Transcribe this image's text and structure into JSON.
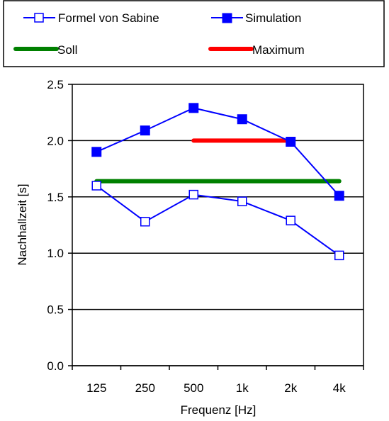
{
  "chart_data": {
    "type": "line",
    "categories": [
      "125",
      "250",
      "500",
      "1k",
      "2k",
      "4k"
    ],
    "xlabel": "Frequenz [Hz]",
    "ylabel": "Nachhallzeit [s]",
    "ylim": [
      0.0,
      2.5
    ],
    "yticks": [
      "0.0",
      "0.5",
      "1.0",
      "1.5",
      "2.0",
      "2.5"
    ],
    "grid": true,
    "legend_position": "top",
    "series": [
      {
        "name": "Formel von Sabine",
        "values": [
          1.6,
          1.28,
          1.52,
          1.46,
          1.29,
          0.98
        ],
        "color": "#0000ff",
        "marker": "open-square"
      },
      {
        "name": "Simulation",
        "values": [
          1.9,
          2.09,
          2.29,
          2.19,
          1.99,
          1.51
        ],
        "color": "#0000ff",
        "marker": "filled-square"
      }
    ],
    "reference_lines": [
      {
        "name": "Soll",
        "value": 1.64,
        "from_index": 0,
        "to_index": 5,
        "color": "#008000"
      },
      {
        "name": "Maximum",
        "value": 2.0,
        "from_index": 2,
        "to_index": 4,
        "color": "#ff0000"
      }
    ]
  }
}
